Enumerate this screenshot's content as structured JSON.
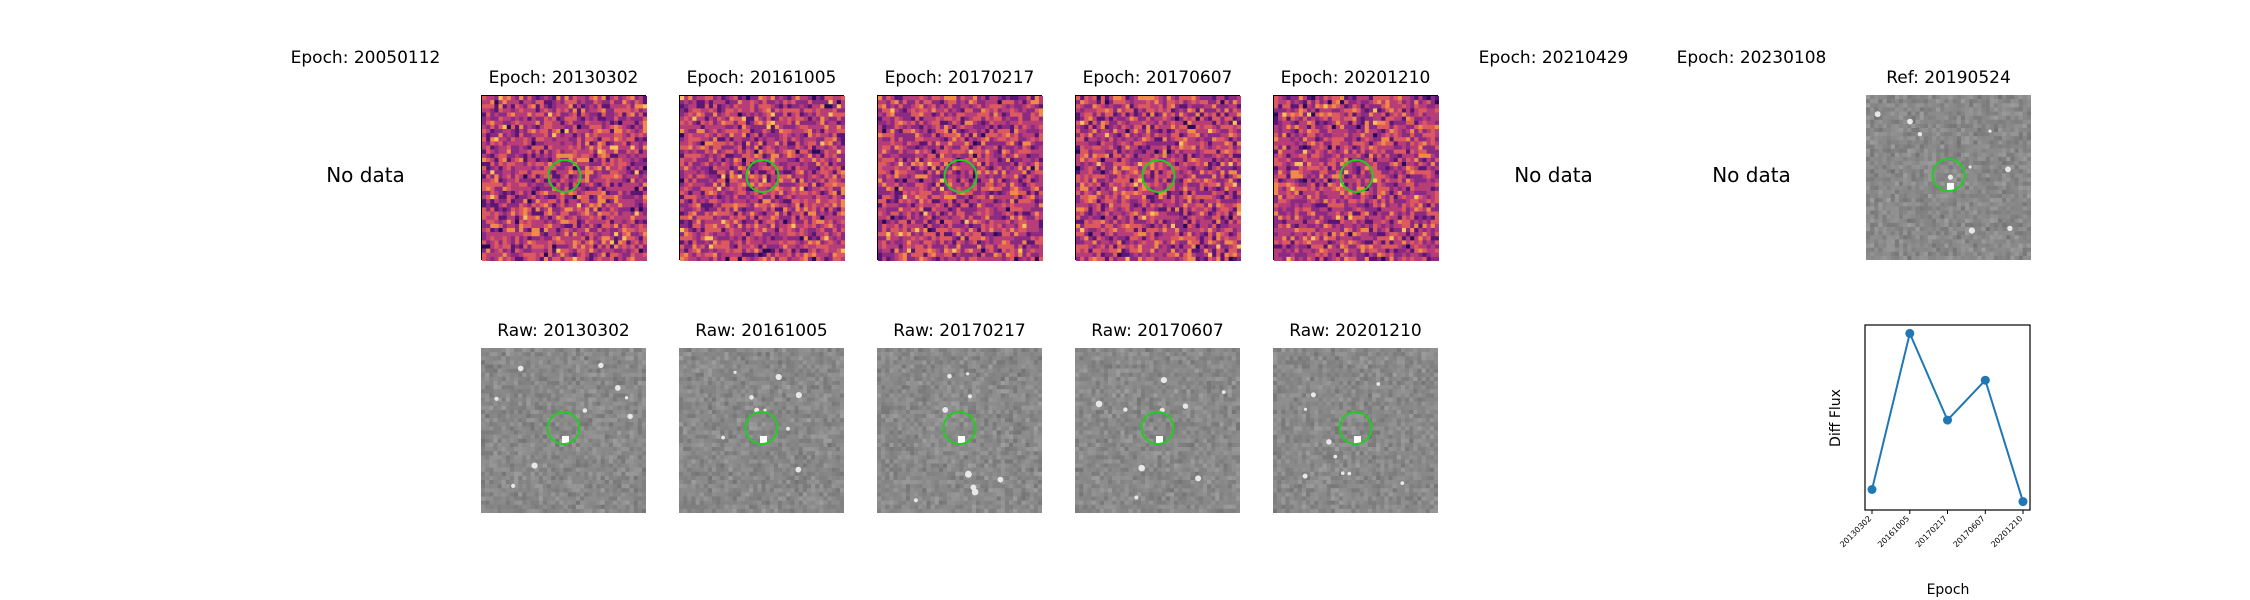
{
  "top_row": [
    {
      "id": "e1",
      "title": "Epoch: 20050112",
      "has_data": false,
      "no_data_label": "No data"
    },
    {
      "id": "e2",
      "title": "Epoch: 20130302",
      "has_data": true,
      "style": "diff"
    },
    {
      "id": "e3",
      "title": "Epoch: 20161005",
      "has_data": true,
      "style": "diff"
    },
    {
      "id": "e4",
      "title": "Epoch: 20170217",
      "has_data": true,
      "style": "diff"
    },
    {
      "id": "e5",
      "title": "Epoch: 20170607",
      "has_data": true,
      "style": "diff"
    },
    {
      "id": "e6",
      "title": "Epoch: 20201210",
      "has_data": true,
      "style": "diff"
    },
    {
      "id": "e7",
      "title": "Epoch: 20210429",
      "has_data": false,
      "no_data_label": "No data"
    },
    {
      "id": "e8",
      "title": "Epoch: 20230108",
      "has_data": false,
      "no_data_label": "No data"
    },
    {
      "id": "ref",
      "title": "Ref: 20190524",
      "has_data": true,
      "style": "gray"
    }
  ],
  "bottom_row": [
    {
      "id": "r2",
      "title": "Raw: 20130302",
      "style": "gray"
    },
    {
      "id": "r3",
      "title": "Raw: 20161005",
      "style": "gray"
    },
    {
      "id": "r4",
      "title": "Raw: 20170217",
      "style": "gray"
    },
    {
      "id": "r5",
      "title": "Raw: 20170607",
      "style": "gray"
    },
    {
      "id": "r6",
      "title": "Raw: 20201210",
      "style": "gray"
    }
  ],
  "colors": {
    "circle": "#22cc22",
    "line": "#1f77b4",
    "magma": [
      "#2a0b5a",
      "#5a1675",
      "#8a2a82",
      "#b73d78",
      "#dc5a5e",
      "#f08a48",
      "#f9c15a"
    ]
  },
  "chart_data": {
    "type": "line",
    "x": [
      "20130302",
      "20161005",
      "20170217",
      "20170607",
      "20201210"
    ],
    "y": [
      0.1,
      1.0,
      0.5,
      0.73,
      0.03
    ],
    "xlabel": "Epoch",
    "ylabel": "Diff Flux",
    "grid": false,
    "legend": false
  }
}
